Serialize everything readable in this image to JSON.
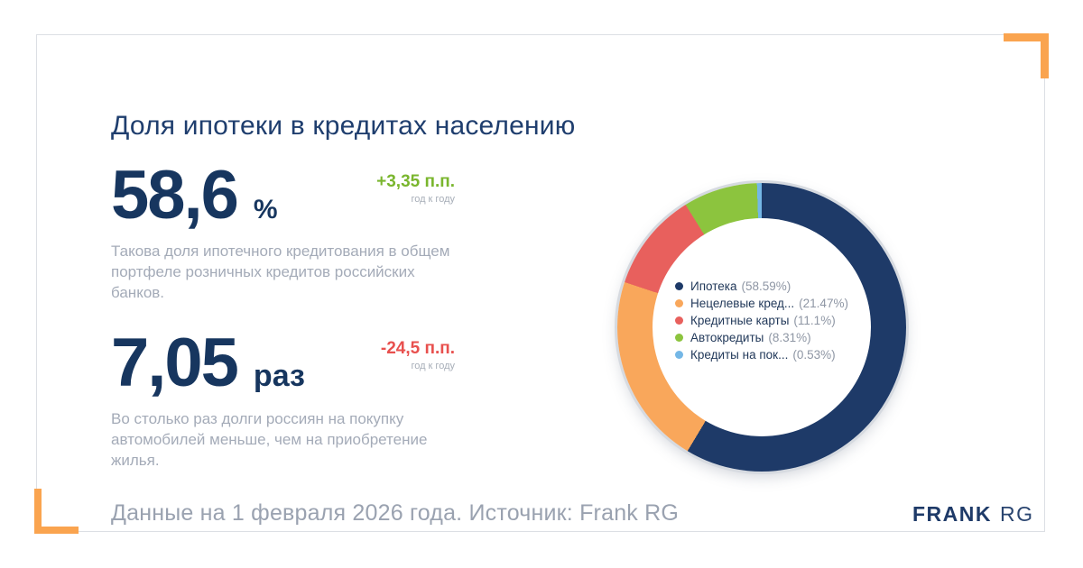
{
  "page": {
    "title": "Доля ипотеки в кредитах населению",
    "footer": "Данные на 1 февраля 2026 года. Источник: Frank RG",
    "logo": {
      "part1": "FRANK",
      "part2": "RG"
    }
  },
  "colors": {
    "accent_orange": "#faa44f",
    "navy": "#1e3a68",
    "positive": "#7ab62e",
    "negative": "#e8504e",
    "muted_text": "#a4abb8",
    "ring_rim": "#d6dae0"
  },
  "stats": [
    {
      "value": "58,6",
      "unit": "%",
      "delta": "+3,35 п.п.",
      "delta_positive": true,
      "delta_caption": "год к году",
      "description": "Такова доля ипотечного кредитования в общем\nпортфеле розничных кредитов российских\nбанков."
    },
    {
      "value": "7,05",
      "unit": "раз",
      "delta": "-24,5 п.п.",
      "delta_positive": false,
      "delta_caption": "год к году",
      "description": "Во столько раз долги россиян на покупку\nавтомобилей меньше, чем на приобретение\nжилья."
    }
  ],
  "chart_data": {
    "type": "pie",
    "donut": true,
    "start_angle_deg": 0,
    "direction": "clockwise",
    "legend_position": "center",
    "series": [
      {
        "name": "Ипотека",
        "value": 58.59,
        "pct_label": "58.59%",
        "color": "#1e3a68"
      },
      {
        "name": "Нецелевые кред...",
        "value": 21.47,
        "pct_label": "21.47%",
        "color": "#f9a75b"
      },
      {
        "name": "Кредитные карты",
        "value": 11.1,
        "pct_label": "11.1%",
        "color": "#e8605d"
      },
      {
        "name": "Автокредиты",
        "value": 8.31,
        "pct_label": "8.31%",
        "color": "#8cc43e"
      },
      {
        "name": "Кредиты на пок...",
        "value": 0.53,
        "pct_label": "0.53%",
        "color": "#74b7e6"
      }
    ]
  }
}
